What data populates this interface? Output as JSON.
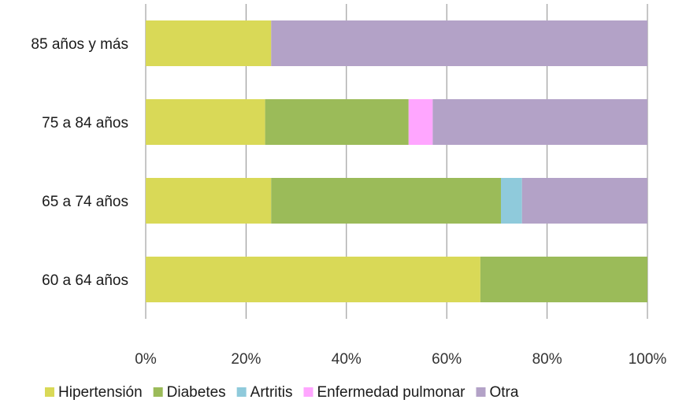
{
  "chart_data": {
    "type": "bar",
    "orientation": "horizontal",
    "stacked": "percent",
    "categories": [
      "85 años y más",
      "75 a 84 años",
      "65 a 74 años",
      "60 a 64 años"
    ],
    "series": [
      {
        "name": "Hipertensión",
        "color": "#d9d957",
        "values": [
          25,
          23.8,
          25,
          66.7
        ]
      },
      {
        "name": "Diabetes",
        "color": "#9bbb59",
        "values": [
          0,
          28.6,
          45.8,
          33.3
        ]
      },
      {
        "name": "Artritis",
        "color": "#8fcadb",
        "values": [
          0,
          0,
          4.2,
          0
        ]
      },
      {
        "name": "Enfermedad pulmonar",
        "color": "#ffa6ff",
        "values": [
          0,
          4.8,
          0,
          0
        ]
      },
      {
        "name": "Otra",
        "color": "#b3a2c7",
        "values": [
          75,
          42.8,
          25,
          0
        ]
      }
    ],
    "xlim": [
      0,
      100
    ],
    "x_ticks": [
      "0%",
      "20%",
      "40%",
      "60%",
      "80%",
      "100%"
    ],
    "grid": true,
    "legend_position": "bottom",
    "title": "",
    "xlabel": "",
    "ylabel": ""
  }
}
